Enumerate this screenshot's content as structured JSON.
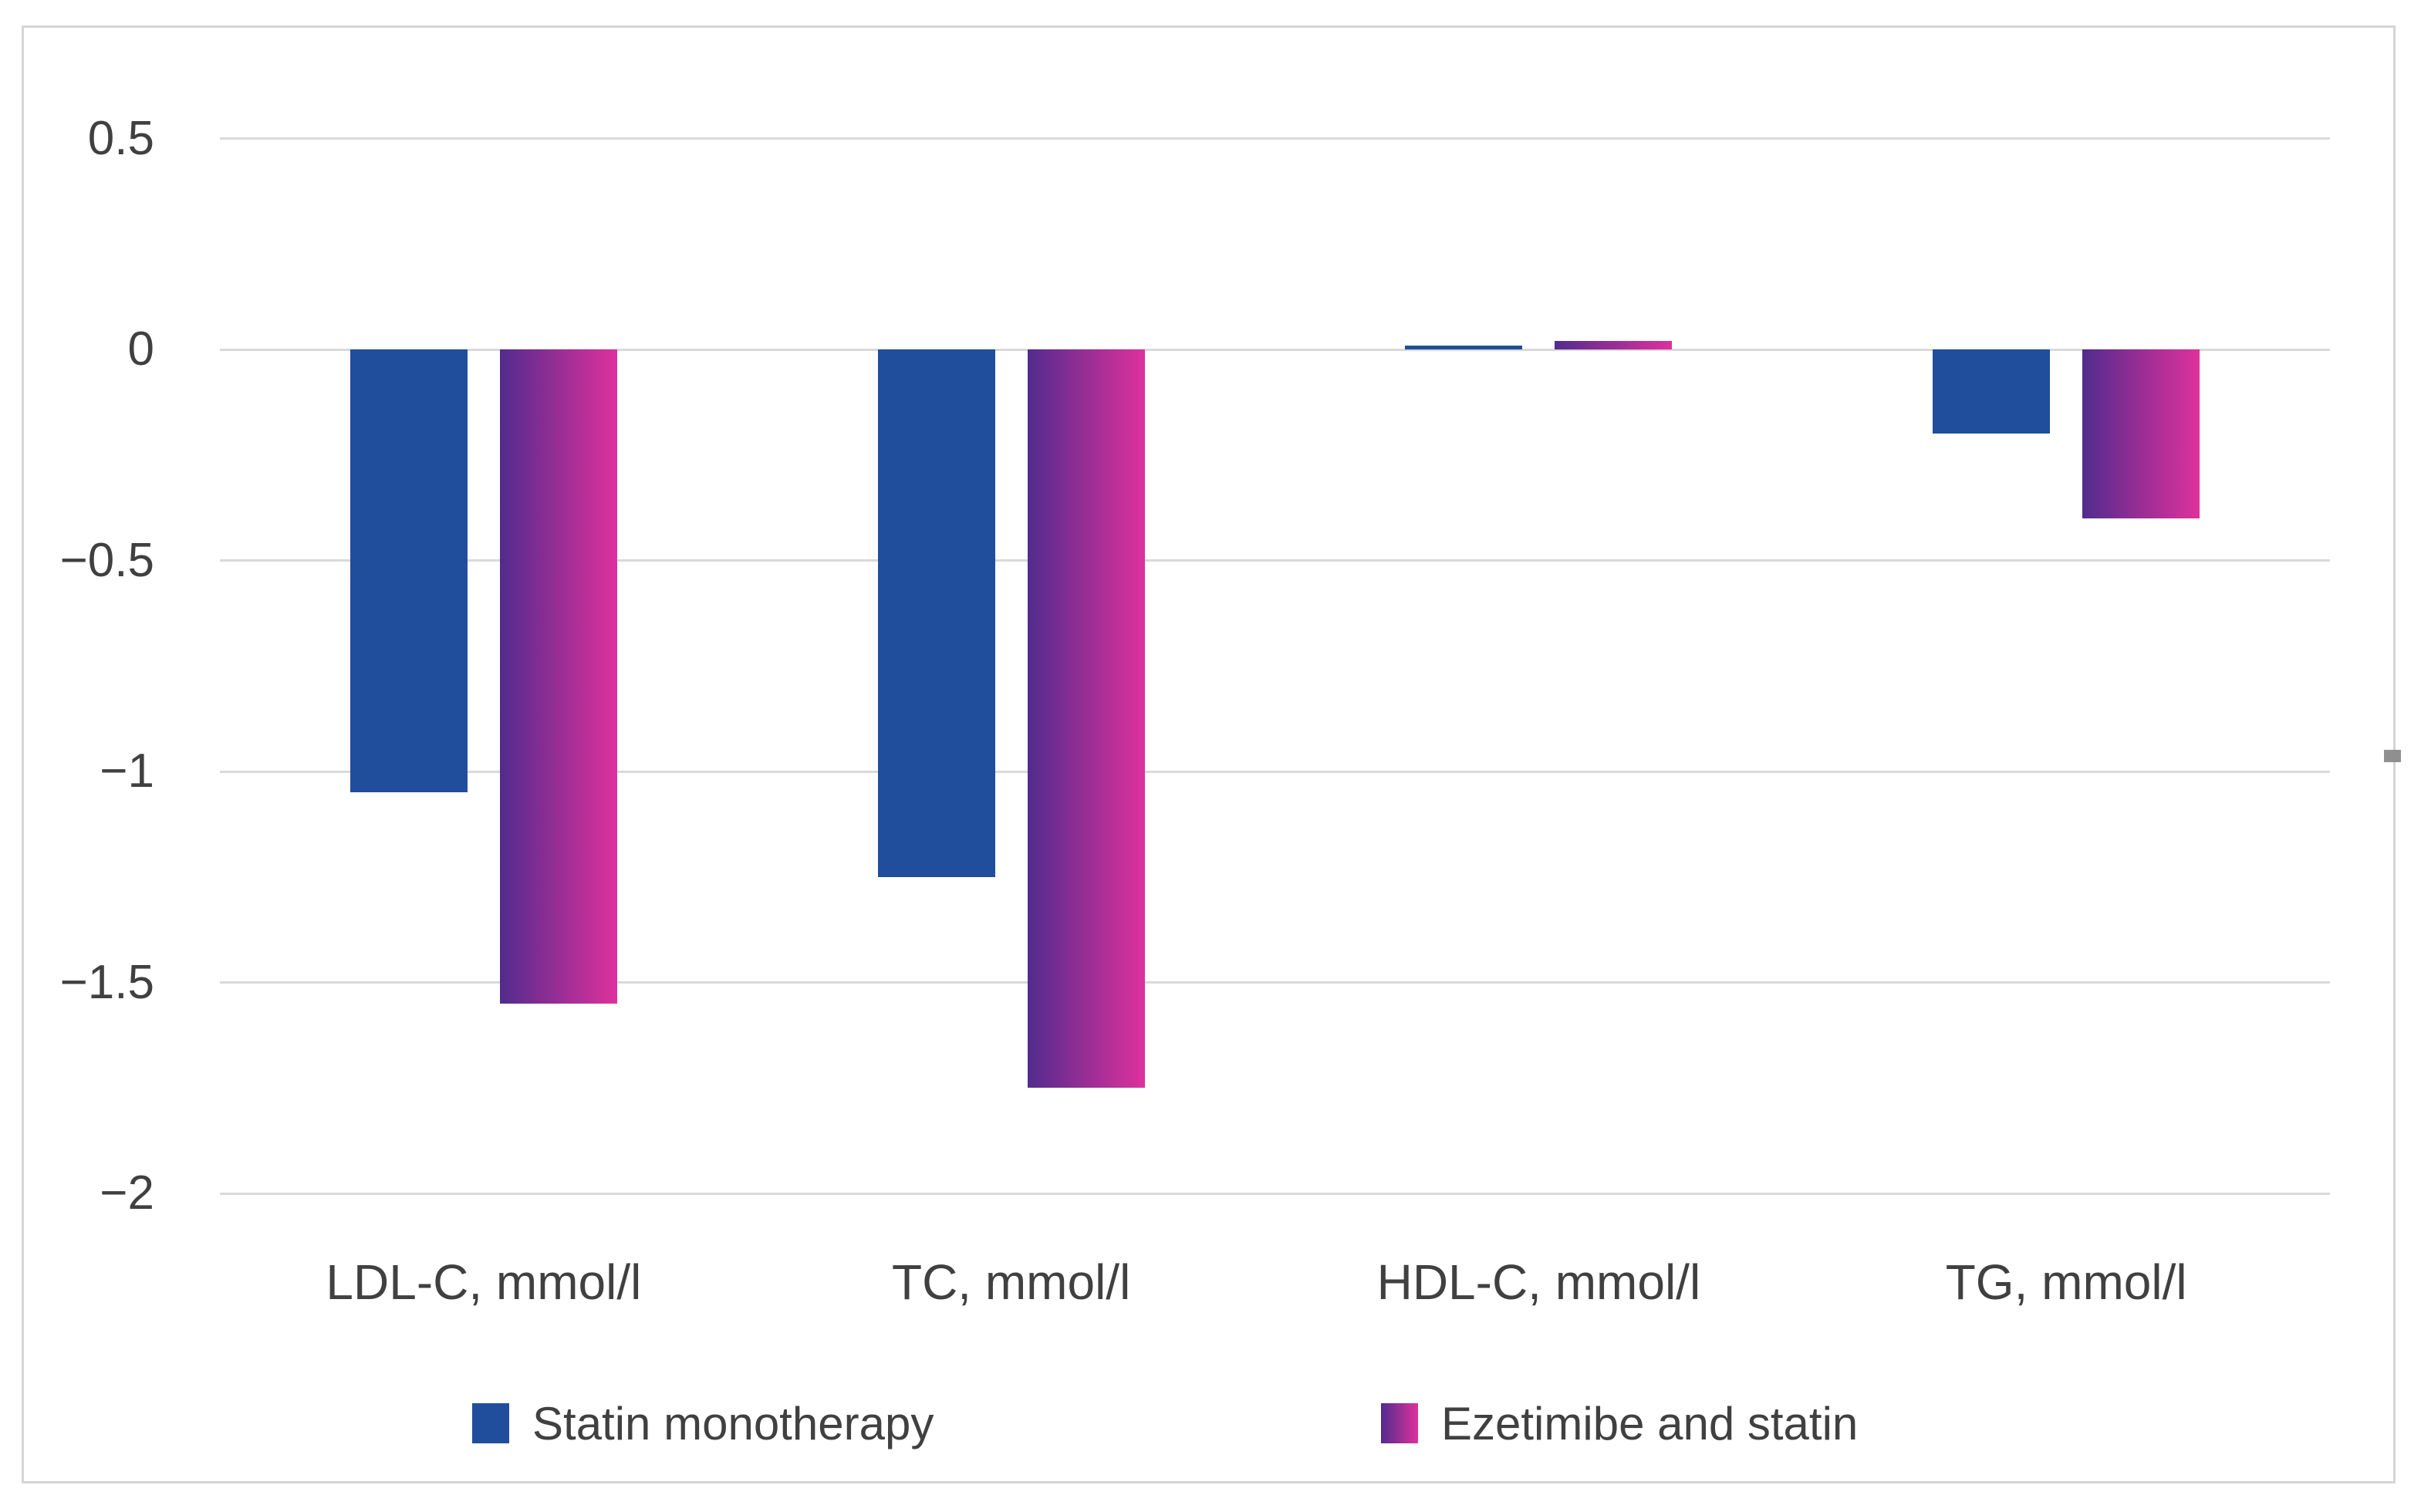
{
  "chart_data": {
    "type": "bar",
    "title": "",
    "xlabel": "",
    "ylabel": "",
    "categories": [
      "LDL-C, mmol/l",
      "TC, mmol/l",
      "HDL-C, mmol/l",
      "TG, mmol/l"
    ],
    "series": [
      {
        "name": "Statin monotherapy",
        "color": "#204E9C",
        "values": [
          -1.05,
          -1.25,
          0.01,
          -0.2
        ]
      },
      {
        "name": "Ezetimibe and statin",
        "gradient": {
          "from": "#522B8E",
          "to": "#DE319C"
        },
        "values": [
          -1.55,
          -1.75,
          0.02,
          -0.4
        ]
      }
    ],
    "y_ticks": [
      {
        "label": "0.5",
        "value": 0.5
      },
      {
        "label": "0",
        "value": 0
      },
      {
        "label": "−0.5",
        "value": -0.5
      },
      {
        "label": "−1",
        "value": -1
      },
      {
        "label": "−1.5",
        "value": -1.5
      },
      {
        "label": "−2",
        "value": -2
      }
    ],
    "ylim": [
      -2,
      0.5
    ],
    "grid": "horizontal",
    "legend_position": "bottom",
    "colors": {
      "grid": "#D9D9D9",
      "frame": "#D5D5D5",
      "text": "#404040",
      "background": "#FFFFFF"
    }
  }
}
